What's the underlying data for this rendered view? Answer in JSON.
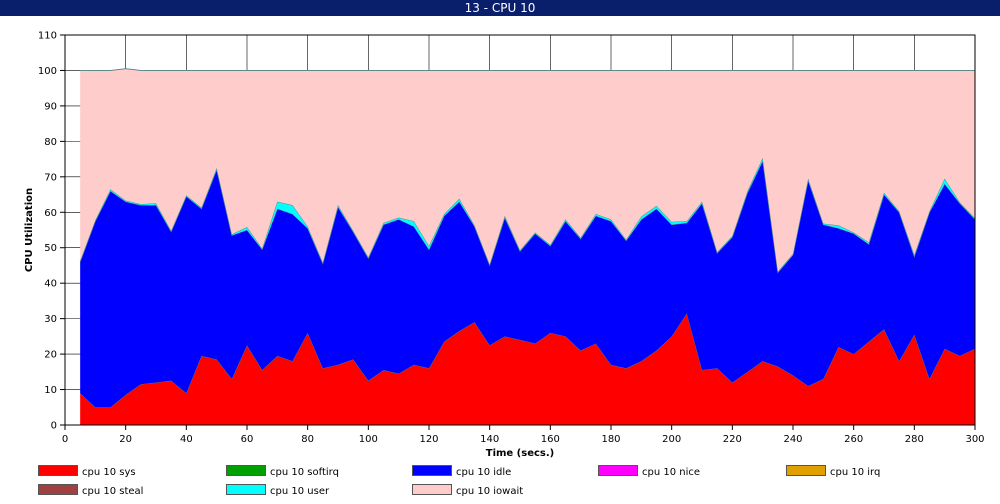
{
  "window": {
    "title": "13 - CPU 10"
  },
  "chart_data": {
    "type": "area",
    "title": "13 - CPU 10",
    "xlabel": "Time (secs.)",
    "ylabel": "CPU Utilization",
    "xlim": [
      0,
      300
    ],
    "ylim": [
      0,
      110
    ],
    "xticks": [
      0,
      20,
      40,
      60,
      80,
      100,
      120,
      140,
      160,
      180,
      200,
      220,
      240,
      260,
      280,
      300
    ],
    "yticks": [
      0,
      10,
      20,
      30,
      40,
      50,
      60,
      70,
      80,
      90,
      100,
      110
    ],
    "grid": true,
    "stacked": true,
    "x": [
      5,
      10,
      15,
      20,
      25,
      30,
      35,
      40,
      45,
      50,
      55,
      60,
      65,
      70,
      75,
      80,
      85,
      90,
      95,
      100,
      105,
      110,
      115,
      120,
      125,
      130,
      135,
      140,
      145,
      150,
      155,
      160,
      165,
      170,
      175,
      180,
      185,
      190,
      195,
      200,
      205,
      210,
      215,
      220,
      225,
      230,
      235,
      240,
      245,
      250,
      255,
      260,
      265,
      270,
      275,
      280,
      285,
      290,
      295,
      300
    ],
    "series": [
      {
        "name": "cpu 10 sys",
        "color": "#ff0000",
        "values": [
          9,
          5,
          5,
          8.5,
          11.5,
          12,
          12.5,
          9,
          19.5,
          18.5,
          13,
          22.5,
          15.5,
          19.5,
          18,
          26,
          16,
          17,
          18.5,
          12.5,
          15.5,
          14.5,
          17,
          16,
          23.5,
          26.5,
          29,
          22.5,
          25,
          24,
          23,
          26,
          25,
          21,
          23,
          17,
          16,
          18,
          21,
          25,
          31.5,
          15.5,
          16,
          12,
          15,
          18,
          16.5,
          14,
          11,
          13,
          22,
          20,
          23.5,
          27,
          18,
          25.5,
          13,
          21.5,
          19.5,
          21.5
        ]
      },
      {
        "name": "cpu 10 softirq",
        "color": "#00a000",
        "values": [
          0,
          0,
          0,
          0,
          0,
          0,
          0,
          0,
          0,
          0,
          0,
          0,
          0,
          0,
          0,
          0,
          0,
          0,
          0,
          0,
          0,
          0,
          0,
          0,
          0,
          0,
          0,
          0,
          0,
          0,
          0,
          0,
          0,
          0,
          0,
          0,
          0,
          0,
          0,
          0,
          0,
          0,
          0,
          0,
          0,
          0,
          0,
          0,
          0,
          0,
          0,
          0,
          0,
          0,
          0,
          0,
          0,
          0,
          0,
          0
        ]
      },
      {
        "name": "cpu 10 idle",
        "color": "#0000ff",
        "values": [
          37,
          52.5,
          61,
          54.5,
          50.5,
          50,
          42,
          55.5,
          41.5,
          53.5,
          40.5,
          32.5,
          34,
          41.5,
          41.5,
          29.5,
          29.5,
          44.5,
          36,
          34.5,
          41,
          43.5,
          39,
          33.5,
          35.5,
          36.5,
          27,
          22.5,
          33.5,
          25,
          31,
          24.5,
          32.5,
          31.5,
          36,
          40.5,
          36,
          40,
          40,
          31.5,
          25.5,
          47,
          32.5,
          41,
          50.5,
          56.5,
          26.5,
          34,
          58,
          43.5,
          33.5,
          34,
          27.5,
          38,
          42,
          22,
          47,
          46.5,
          43,
          36.5
        ]
      },
      {
        "name": "cpu 10 nice",
        "color": "#ff00ff",
        "values": [
          0,
          0,
          0,
          0,
          0,
          0,
          0,
          0,
          0,
          0,
          0,
          0,
          0,
          0,
          0,
          0,
          0,
          0,
          0,
          0,
          0,
          0,
          0,
          0,
          0,
          0,
          0,
          0,
          0,
          0,
          0,
          0,
          0,
          0,
          0,
          0,
          0,
          0,
          0,
          0,
          0,
          0,
          0,
          0,
          0,
          0,
          0,
          0,
          0,
          0,
          0,
          0,
          0,
          0,
          0,
          0,
          0,
          0,
          0,
          0
        ]
      },
      {
        "name": "cpu 10 irq",
        "color": "#e0a000",
        "values": [
          0,
          0,
          0,
          0,
          0,
          0,
          0,
          0,
          0,
          0,
          0,
          0,
          0,
          0,
          0,
          0,
          0,
          0,
          0,
          0,
          0,
          0,
          0,
          0,
          0,
          0,
          0,
          0,
          0,
          0,
          0,
          0,
          0,
          0,
          0,
          0,
          0,
          0,
          0,
          0,
          0,
          0,
          0,
          0,
          0,
          0,
          0,
          0,
          0,
          0,
          0,
          0,
          0,
          0,
          0,
          0,
          0,
          0,
          0,
          0
        ]
      },
      {
        "name": "cpu 10 steal",
        "color": "#a04040",
        "values": [
          0,
          0,
          0,
          0,
          0,
          0,
          0,
          0,
          0,
          0,
          0,
          0,
          0,
          0,
          0,
          0,
          0,
          0,
          0,
          0,
          0,
          0,
          0,
          0,
          0,
          0,
          0,
          0,
          0,
          0,
          0,
          0,
          0,
          0,
          0,
          0,
          0,
          0,
          0,
          0,
          0,
          0,
          0,
          0,
          0,
          0,
          0,
          0,
          0,
          0,
          0,
          0,
          0,
          0,
          0,
          0,
          0,
          0,
          0,
          0
        ]
      },
      {
        "name": "cpu 10 user",
        "color": "#00ffff",
        "values": [
          0.3,
          0.3,
          0.5,
          0.3,
          0.3,
          0.5,
          0.3,
          0.3,
          0.3,
          0.5,
          0.3,
          0.8,
          0.3,
          2,
          2.5,
          0.5,
          0.3,
          0.5,
          0.3,
          0.3,
          0.5,
          0.5,
          1.5,
          1,
          0.5,
          0.8,
          0.3,
          0.3,
          0.5,
          0.3,
          0.3,
          0.3,
          0.5,
          0.3,
          0.5,
          0.5,
          0.3,
          0.8,
          0.8,
          0.8,
          0.5,
          0.5,
          0.3,
          0.3,
          0.5,
          0.8,
          0.3,
          0.3,
          0.5,
          0.3,
          0.8,
          0.3,
          0.5,
          0.5,
          0.3,
          0.5,
          0.3,
          1.5,
          0.3,
          0.3
        ]
      },
      {
        "name": "cpu 10 iowait",
        "color": "#ffcccc",
        "values": [
          53.7,
          42.2,
          33.5,
          37.2,
          37.7,
          37.5,
          45.2,
          35.2,
          38.7,
          27.5,
          46.2,
          44.2,
          50.2,
          37,
          38,
          44,
          54.2,
          38,
          45.2,
          52.7,
          43,
          41.5,
          42.5,
          49.5,
          40.5,
          36.2,
          43.7,
          54.7,
          41,
          50.7,
          45.7,
          49.2,
          42,
          47.2,
          40.5,
          42,
          47.7,
          41.2,
          38.2,
          42.7,
          42.5,
          37,
          51.2,
          46.7,
          34,
          24.7,
          56.7,
          51.7,
          30.5,
          43.2,
          43.7,
          45.7,
          48.5,
          34.5,
          39.7,
          52,
          39.7,
          30.5,
          37.2,
          41.7
        ]
      }
    ]
  }
}
